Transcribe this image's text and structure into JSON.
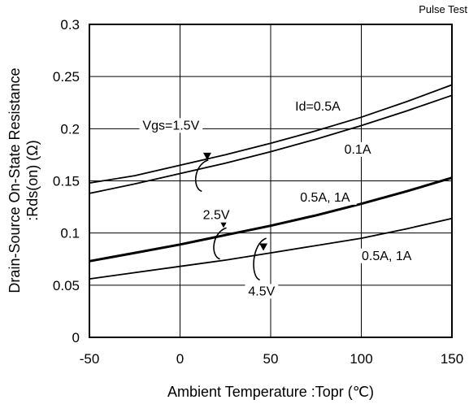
{
  "chart_data": {
    "type": "line",
    "note_top_right": "Pulse Test",
    "title": "",
    "xlabel": "Ambient Temperature :Topr (℃)",
    "ylabel_line1": "Drain-Source On-State Resistance",
    "ylabel_line2": ":Rds(on) (Ω)",
    "xlim": [
      -50,
      150
    ],
    "ylim": [
      0,
      0.3
    ],
    "xticks": [
      -50,
      0,
      50,
      100,
      150
    ],
    "xtick_labels": [
      "-50",
      "0",
      "50",
      "100",
      "150"
    ],
    "yticks": [
      0,
      0.05,
      0.1,
      0.15,
      0.2,
      0.25,
      0.3
    ],
    "ytick_labels": [
      "0",
      "0.05",
      "0.1",
      "0.15",
      "0.2",
      "0.25",
      "0.3"
    ],
    "grid": true,
    "series": [
      {
        "name": "Vgs=1.5V Id=0.5A",
        "bold": false,
        "x": [
          -50,
          -25,
          0,
          25,
          50,
          75,
          100,
          125,
          150
        ],
        "y": [
          0.148,
          0.155,
          0.165,
          0.175,
          0.186,
          0.198,
          0.211,
          0.226,
          0.242
        ]
      },
      {
        "name": "Vgs=1.5V Id=0.1A",
        "bold": false,
        "x": [
          -50,
          -25,
          0,
          25,
          50,
          75,
          100,
          125,
          150
        ],
        "y": [
          0.138,
          0.147,
          0.157,
          0.167,
          0.178,
          0.19,
          0.203,
          0.217,
          0.232
        ]
      },
      {
        "name": "Vgs=2.5V Id=0.5A,1A",
        "bold": true,
        "x": [
          -50,
          -25,
          0,
          25,
          50,
          75,
          100,
          125,
          150
        ],
        "y": [
          0.073,
          0.081,
          0.089,
          0.098,
          0.107,
          0.117,
          0.128,
          0.14,
          0.153
        ]
      },
      {
        "name": "Vgs=4.5V Id=0.5A,1A",
        "bold": false,
        "x": [
          -50,
          -25,
          0,
          25,
          50,
          75,
          100,
          125,
          150
        ],
        "y": [
          0.056,
          0.062,
          0.068,
          0.074,
          0.081,
          0.088,
          0.095,
          0.104,
          0.114
        ]
      }
    ],
    "annotations": [
      {
        "text": "Vgs=1.5V",
        "x": -5,
        "y": 0.2
      },
      {
        "text": "Id=0.5A",
        "x": 76,
        "y": 0.218
      },
      {
        "text": "0.1A",
        "x": 98,
        "y": 0.177
      },
      {
        "text": "2.5V",
        "x": 20,
        "y": 0.114
      },
      {
        "text": "0.5A, 1A",
        "x": 80,
        "y": 0.131
      },
      {
        "text": "0.5A, 1A",
        "x": 114,
        "y": 0.075
      },
      {
        "text": "4.5V",
        "x": 45,
        "y": 0.041
      }
    ]
  }
}
